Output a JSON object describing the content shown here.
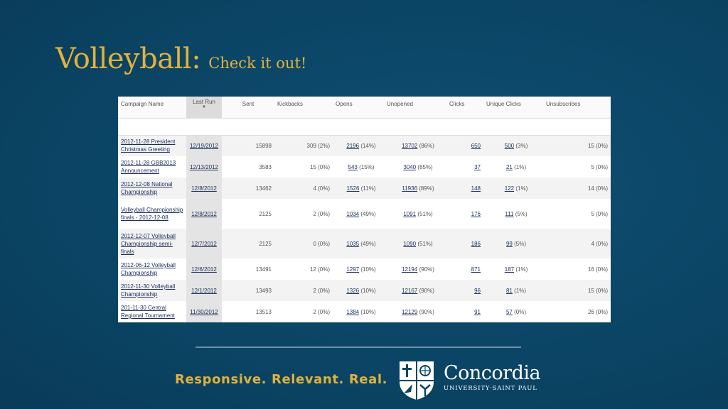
{
  "slide": {
    "title": "Volleyball:",
    "subtitle": "Check it out!",
    "tagline": "Responsive. Relevant. Real.",
    "brand_name": "Concordia",
    "brand_sub": "UNIVERSITY·SAINT PAUL"
  },
  "colors": {
    "background": "#0b4566",
    "title_gold": "#e2b13c",
    "link_navy": "#1c2f5c"
  },
  "table": {
    "headers": {
      "campaign_name": "Campaign Name",
      "last_run": "Last Run",
      "sort_indicator": "▼",
      "sent": "Sent",
      "kickbacks": "Kickbacks",
      "opens": "Opens",
      "unopened": "Unopened",
      "clicks": "Clicks",
      "unique_clicks": "Unique Clicks",
      "unsubscribes": "Unsubscribes"
    },
    "rows": [
      {
        "name": "2012-11-28 President Christmas Greeting",
        "last_run": "12/19/2012",
        "sent": "15898",
        "kickbacks": "309 (2%)",
        "opens_n": "2196",
        "opens_p": "(14%)",
        "unopened_n": "13702",
        "unopened_p": "(86%)",
        "clicks": "650",
        "unique_n": "500",
        "unique_p": "(3%)",
        "unsub": "15 (0%)"
      },
      {
        "name": "2012-11-28 GBB2013 Announcement",
        "last_run": "12/13/2012",
        "sent": "3583",
        "kickbacks": "15 (0%)",
        "opens_n": "543",
        "opens_p": "(15%)",
        "unopened_n": "3040",
        "unopened_p": "(85%)",
        "clicks": "37",
        "unique_n": "21",
        "unique_p": "(1%)",
        "unsub": "5 (0%)"
      },
      {
        "name": "2012-12-08 National Championship",
        "last_run": "12/8/2012",
        "sent": "13462",
        "kickbacks": "4 (0%)",
        "opens_n": "1526",
        "opens_p": "(11%)",
        "unopened_n": "11936",
        "unopened_p": "(89%)",
        "clicks": "148",
        "unique_n": "122",
        "unique_p": "(1%)",
        "unsub": "14 (0%)"
      },
      {
        "name": "Volleyball Championship finals - 2012-12-08",
        "last_run": "12/8/2012",
        "sent": "2125",
        "kickbacks": "2 (0%)",
        "opens_n": "1034",
        "opens_p": "(49%)",
        "unopened_n": "1091",
        "unopened_p": "(51%)",
        "clicks": "176",
        "unique_n": "111",
        "unique_p": "(5%)",
        "unsub": "5 (0%)"
      },
      {
        "name": "2012-12-07 Volleyball Championship semi-finals",
        "last_run": "12/7/2012",
        "sent": "2125",
        "kickbacks": "0 (0%)",
        "opens_n": "1035",
        "opens_p": "(49%)",
        "unopened_n": "1090",
        "unopened_p": "(51%)",
        "clicks": "186",
        "unique_n": "99",
        "unique_p": "(5%)",
        "unsub": "4 (0%)"
      },
      {
        "name": "2012-06-12 Volleyball Championship",
        "last_run": "12/6/2012",
        "sent": "13491",
        "kickbacks": "12 (0%)",
        "opens_n": "1297",
        "opens_p": "(10%)",
        "unopened_n": "12194",
        "unopened_p": "(90%)",
        "clicks": "871",
        "unique_n": "187",
        "unique_p": "(1%)",
        "unsub": "16 (0%)"
      },
      {
        "name": "2012-11-30 Volleyball Championship",
        "last_run": "12/1/2012",
        "sent": "13493",
        "kickbacks": "2 (0%)",
        "opens_n": "1326",
        "opens_p": "(10%)",
        "unopened_n": "12167",
        "unopened_p": "(90%)",
        "clicks": "96",
        "unique_n": "81",
        "unique_p": "(1%)",
        "unsub": "15 (0%)"
      },
      {
        "name": "201-11-30 Central Regional Tournament",
        "last_run": "11/30/2012",
        "sent": "13513",
        "kickbacks": "2 (0%)",
        "opens_n": "1384",
        "opens_p": "(10%)",
        "unopened_n": "12129",
        "unopened_p": "(90%)",
        "clicks": "91",
        "unique_n": "57",
        "unique_p": "(0%)",
        "unsub": "26 (0%)"
      }
    ]
  }
}
